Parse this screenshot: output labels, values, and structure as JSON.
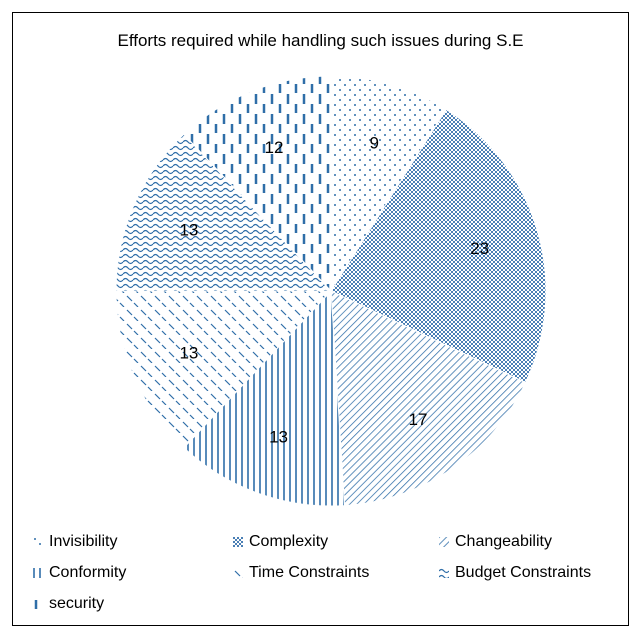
{
  "chart_data": {
    "type": "pie",
    "title": "Efforts required while handling such issues during S.E",
    "categories": [
      "Invisibility",
      "Complexity",
      "Changeability",
      "Conformity",
      "Time Constraints",
      "Budget Constraints",
      "security"
    ],
    "values": [
      9,
      23,
      17,
      13,
      13,
      13,
      12
    ],
    "start_angle_deg": 0,
    "direction": "clockwise",
    "legend_position": "bottom",
    "colors": {
      "pattern": "#2f6ea8",
      "light": "#6f9bc7",
      "text": "#000000",
      "background": "#ffffff",
      "border": "#000000"
    }
  }
}
